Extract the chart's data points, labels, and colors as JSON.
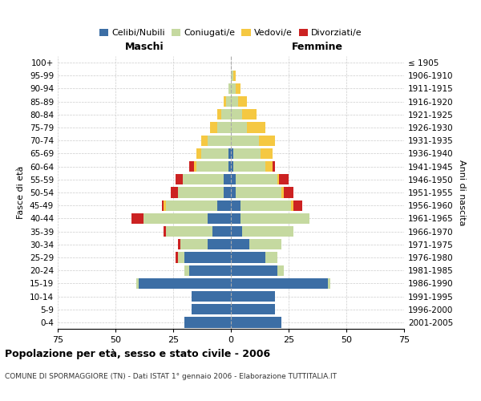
{
  "age_groups": [
    "0-4",
    "5-9",
    "10-14",
    "15-19",
    "20-24",
    "25-29",
    "30-34",
    "35-39",
    "40-44",
    "45-49",
    "50-54",
    "55-59",
    "60-64",
    "65-69",
    "70-74",
    "75-79",
    "80-84",
    "85-89",
    "90-94",
    "95-99",
    "100+"
  ],
  "birth_years": [
    "2001-2005",
    "1996-2000",
    "1991-1995",
    "1986-1990",
    "1981-1985",
    "1976-1980",
    "1971-1975",
    "1966-1970",
    "1961-1965",
    "1956-1960",
    "1951-1955",
    "1946-1950",
    "1941-1945",
    "1936-1940",
    "1931-1935",
    "1926-1930",
    "1921-1925",
    "1916-1920",
    "1911-1915",
    "1906-1910",
    "≤ 1905"
  ],
  "males": {
    "celibi": [
      20,
      17,
      17,
      40,
      18,
      20,
      10,
      8,
      10,
      6,
      3,
      3,
      1,
      1,
      0,
      0,
      0,
      0,
      0,
      0,
      0
    ],
    "coniugati": [
      0,
      0,
      0,
      1,
      2,
      3,
      12,
      20,
      28,
      22,
      20,
      18,
      14,
      12,
      10,
      6,
      4,
      2,
      1,
      0,
      0
    ],
    "vedovi": [
      0,
      0,
      0,
      0,
      0,
      0,
      0,
      0,
      0,
      1,
      0,
      0,
      1,
      2,
      3,
      3,
      2,
      1,
      0,
      0,
      0
    ],
    "divorziati": [
      0,
      0,
      0,
      0,
      0,
      1,
      1,
      1,
      5,
      1,
      3,
      3,
      2,
      0,
      0,
      0,
      0,
      0,
      0,
      0,
      0
    ]
  },
  "females": {
    "nubili": [
      22,
      19,
      19,
      42,
      20,
      15,
      8,
      5,
      4,
      4,
      2,
      2,
      1,
      1,
      0,
      0,
      0,
      0,
      0,
      0,
      0
    ],
    "coniugate": [
      0,
      0,
      0,
      1,
      3,
      5,
      14,
      22,
      30,
      22,
      20,
      18,
      14,
      12,
      12,
      7,
      5,
      3,
      2,
      1,
      0
    ],
    "vedove": [
      0,
      0,
      0,
      0,
      0,
      0,
      0,
      0,
      0,
      1,
      1,
      1,
      3,
      5,
      7,
      8,
      6,
      4,
      2,
      1,
      0
    ],
    "divorziate": [
      0,
      0,
      0,
      0,
      0,
      0,
      0,
      0,
      0,
      4,
      4,
      4,
      1,
      0,
      0,
      0,
      0,
      0,
      0,
      0,
      0
    ]
  },
  "colors": {
    "celibi_nubili": "#3c6ea5",
    "coniugati": "#c5d9a0",
    "vedovi": "#f5c842",
    "divorziati": "#cc2222"
  },
  "xlim": 75,
  "title": "Popolazione per età, sesso e stato civile - 2006",
  "subtitle": "COMUNE DI SPORMAGGIORE (TN) - Dati ISTAT 1° gennaio 2006 - Elaborazione TUTTITALIA.IT",
  "ylabel_left": "Fasce di età",
  "ylabel_right": "Anni di nascita",
  "xlabel_left": "Maschi",
  "xlabel_right": "Femmine"
}
